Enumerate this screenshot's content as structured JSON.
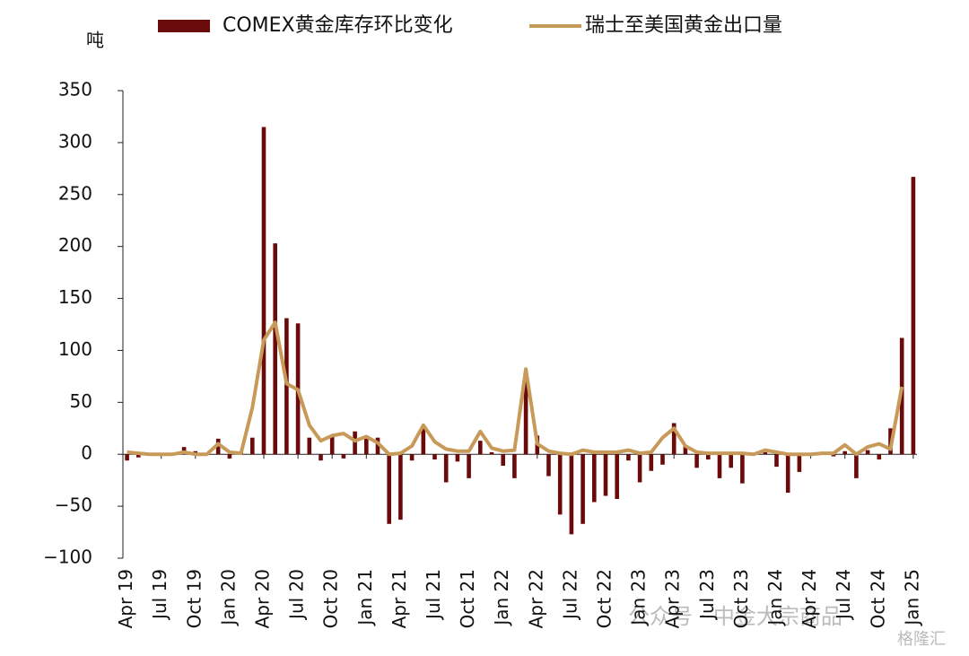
{
  "chart_data": {
    "type": "bar",
    "y_label": "吨",
    "watermark": "公众号 · 中金大宗商品",
    "watermark2": "格隆汇",
    "categories": [
      "Apr 19",
      null,
      null,
      "Jul 19",
      null,
      null,
      "Oct 19",
      null,
      null,
      "Jan 20",
      null,
      null,
      "Apr 20",
      null,
      null,
      "Jul 20",
      null,
      null,
      "Oct 20",
      null,
      null,
      "Jan 21",
      null,
      null,
      "Apr 21",
      null,
      null,
      "Jul 21",
      null,
      null,
      "Oct 21",
      null,
      null,
      "Jan 22",
      null,
      null,
      "Apr 22",
      null,
      null,
      "Jul 22",
      null,
      null,
      "Oct 22",
      null,
      null,
      "Jan 23",
      null,
      null,
      "Apr 23",
      null,
      null,
      "Jul 23",
      null,
      null,
      "Oct 23",
      null,
      null,
      "Jan 24",
      null,
      null,
      "Apr 24",
      null,
      null,
      "Jul 24",
      null,
      null,
      "Oct 24",
      null,
      null,
      "Jan 25"
    ],
    "series": [
      {
        "name": "COMEX黄金库存环比变化",
        "type": "bar",
        "color": "#6b0a0a",
        "values": [
          -6,
          -3,
          0,
          0,
          1,
          7,
          3,
          0,
          15,
          -4,
          2,
          16,
          315,
          203,
          131,
          126,
          16,
          -6,
          17,
          -4,
          22,
          15,
          16,
          -67,
          -63,
          -6,
          26,
          -5,
          -27,
          -7,
          -23,
          13,
          2,
          -11,
          -23,
          70,
          18,
          -21,
          -58,
          -77,
          -67,
          -46,
          -40,
          -43,
          -6,
          -27,
          -16,
          -10,
          30,
          8,
          -13,
          -5,
          -23,
          -13,
          -28,
          0,
          2,
          -12,
          -37,
          -17,
          0,
          0,
          -2,
          3,
          -23,
          4,
          -5,
          25,
          112,
          267
        ]
      },
      {
        "name": "瑞士至美国黄金出口量",
        "type": "line",
        "color": "#c89a5a",
        "values": [
          2,
          1,
          0,
          0,
          0,
          2,
          0,
          0,
          10,
          2,
          1,
          45,
          110,
          127,
          68,
          62,
          28,
          13,
          18,
          20,
          13,
          17,
          11,
          0,
          1,
          8,
          28,
          12,
          5,
          3,
          3,
          22,
          6,
          3,
          4,
          82,
          10,
          3,
          1,
          0,
          4,
          2,
          2,
          2,
          4,
          1,
          2,
          16,
          25,
          8,
          2,
          1,
          1,
          1,
          1,
          0,
          4,
          2,
          0,
          0,
          0,
          1,
          1,
          9,
          0,
          7,
          10,
          5,
          65,
          null
        ]
      }
    ],
    "ylim": [
      -100,
      350
    ],
    "yticks": [
      {
        "value": -100,
        "label": "−100"
      },
      {
        "value": -50,
        "label": "−50"
      },
      0,
      50,
      100,
      150,
      200,
      250,
      300,
      350
    ],
    "legend": "top"
  }
}
